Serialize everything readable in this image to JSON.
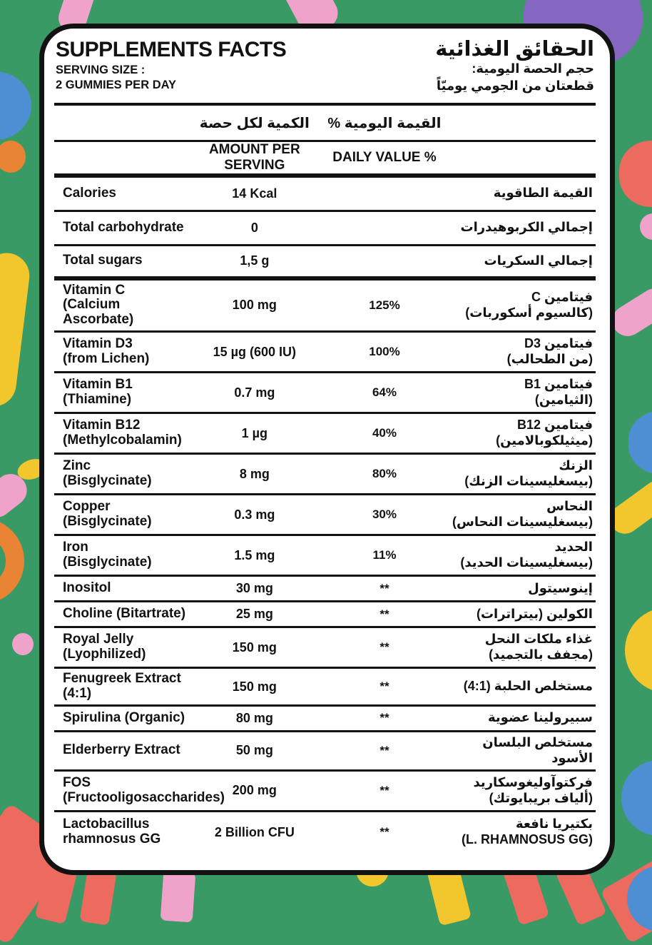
{
  "palette": {
    "background": "#3A9A66",
    "card": "#FFFFFF",
    "line": "#121212",
    "pink": "#F0A3CA",
    "orange": "#E98434",
    "blue": "#4D8FD2",
    "yellow": "#F2C72E",
    "purple": "#8566C1",
    "salmon": "#ED6A5E"
  },
  "header": {
    "title_en": "SUPPLEMENTS FACTS",
    "title_ar": "الحقائق الغذائية",
    "serving_size_label": "SERVING SIZE :",
    "serving_size_value": "2 GUMMIES PER DAY",
    "serving_size_ar_label": "حجم الحصة اليومية:",
    "serving_size_ar_value": "قطعتان من الجومي يوميّاً"
  },
  "columns": {
    "amount_ar": "الكمية لكل حصة",
    "daily_value_ar": "القيمة اليومية %",
    "amount_en": "AMOUNT PER SERVING",
    "daily_value_en": "DAILY VALUE %"
  },
  "rows": [
    {
      "en": [
        "Calories"
      ],
      "amount": "14 Kcal",
      "dv": "",
      "ar": [
        "القيمة الطاقوية"
      ],
      "sep": "normal"
    },
    {
      "en": [
        "Total carbohydrate"
      ],
      "amount": "0",
      "dv": "",
      "ar": [
        "إجمالي الكربوهيدرات"
      ],
      "sep": "normal"
    },
    {
      "en": [
        "Total sugars"
      ],
      "amount": "1,5 g",
      "dv": "",
      "ar": [
        "إجمالي السكريات"
      ],
      "sep": "thick"
    },
    {
      "en": [
        "Vitamin C",
        "(Calcium Ascorbate)"
      ],
      "amount": "100 mg",
      "dv": "125%",
      "ar": [
        "فيتامين C",
        "(كالسيوم أسكوربات)"
      ],
      "sep": "normal"
    },
    {
      "en": [
        "Vitamin D3",
        "(from Lichen)"
      ],
      "amount": "15 µg (600 IU)",
      "dv": "100%",
      "ar": [
        "فيتامين D3",
        "(من الطحالب)"
      ],
      "sep": "normal"
    },
    {
      "en": [
        "Vitamin B1",
        "(Thiamine)"
      ],
      "amount": "0.7 mg",
      "dv": "64%",
      "ar": [
        "فيتامين B1",
        "(الثيامين)"
      ],
      "sep": "normal"
    },
    {
      "en": [
        "Vitamin B12",
        "(Methylcobalamin)"
      ],
      "amount": "1 µg",
      "dv": "40%",
      "ar": [
        "فيتامين B12",
        "(ميثيلكوبالامين)"
      ],
      "sep": "normal"
    },
    {
      "en": [
        "Zinc",
        "(Bisglycinate)"
      ],
      "amount": "8 mg",
      "dv": "80%",
      "ar": [
        "الزنك",
        "(بيسغليسينات الزنك)"
      ],
      "sep": "normal"
    },
    {
      "en": [
        "Copper",
        "(Bisglycinate)"
      ],
      "amount": "0.3 mg",
      "dv": "30%",
      "ar": [
        "النحاس",
        "(بيسغليسينات النحاس)"
      ],
      "sep": "normal"
    },
    {
      "en": [
        "Iron",
        "(Bisglycinate)"
      ],
      "amount": "1.5 mg",
      "dv": "11%",
      "ar": [
        "الحديد",
        "(بيسغليسينات الحديد)"
      ],
      "sep": "normal"
    },
    {
      "en": [
        "Inositol"
      ],
      "amount": "30 mg",
      "dv": "**",
      "ar": [
        "إينوسيتول"
      ],
      "sep": "normal"
    },
    {
      "en": [
        "Choline (Bitartrate)"
      ],
      "amount": "25 mg",
      "dv": "**",
      "ar": [
        "الكولين (بيتراترات)"
      ],
      "sep": "normal"
    },
    {
      "en": [
        "Royal Jelly",
        "(Lyophilized)"
      ],
      "amount": "150 mg",
      "dv": "**",
      "ar": [
        "غذاء ملكات النحل",
        "(مجفف بالتجميد)"
      ],
      "sep": "normal"
    },
    {
      "en": [
        "Fenugreek Extract (4:1)"
      ],
      "amount": "150 mg",
      "dv": "**",
      "ar": [
        "مستخلص الحلبة (4:1)"
      ],
      "sep": "normal"
    },
    {
      "en": [
        "Spirulina (Organic)"
      ],
      "amount": "80 mg",
      "dv": "**",
      "ar": [
        "سبيرولينا عضوية"
      ],
      "sep": "normal"
    },
    {
      "en": [
        "Elderberry Extract"
      ],
      "amount": "50 mg",
      "dv": "**",
      "ar": [
        "مستخلص البلسان الأسود"
      ],
      "sep": "normal"
    },
    {
      "en": [
        "FOS",
        "(Fructooligosaccharides)"
      ],
      "amount": "200 mg",
      "dv": "**",
      "ar": [
        "فركتوآوليغوسكاريد",
        "(ألياف بريبايوتك)"
      ],
      "sep": "normal"
    },
    {
      "en": [
        "Lactobacillus",
        "rhamnosus GG"
      ],
      "amount": "2 Billion CFU",
      "dv": "**",
      "ar": [
        "بكتيريا نافعة",
        "(L. RHAMNOSUS GG)"
      ],
      "sep": "none"
    }
  ]
}
